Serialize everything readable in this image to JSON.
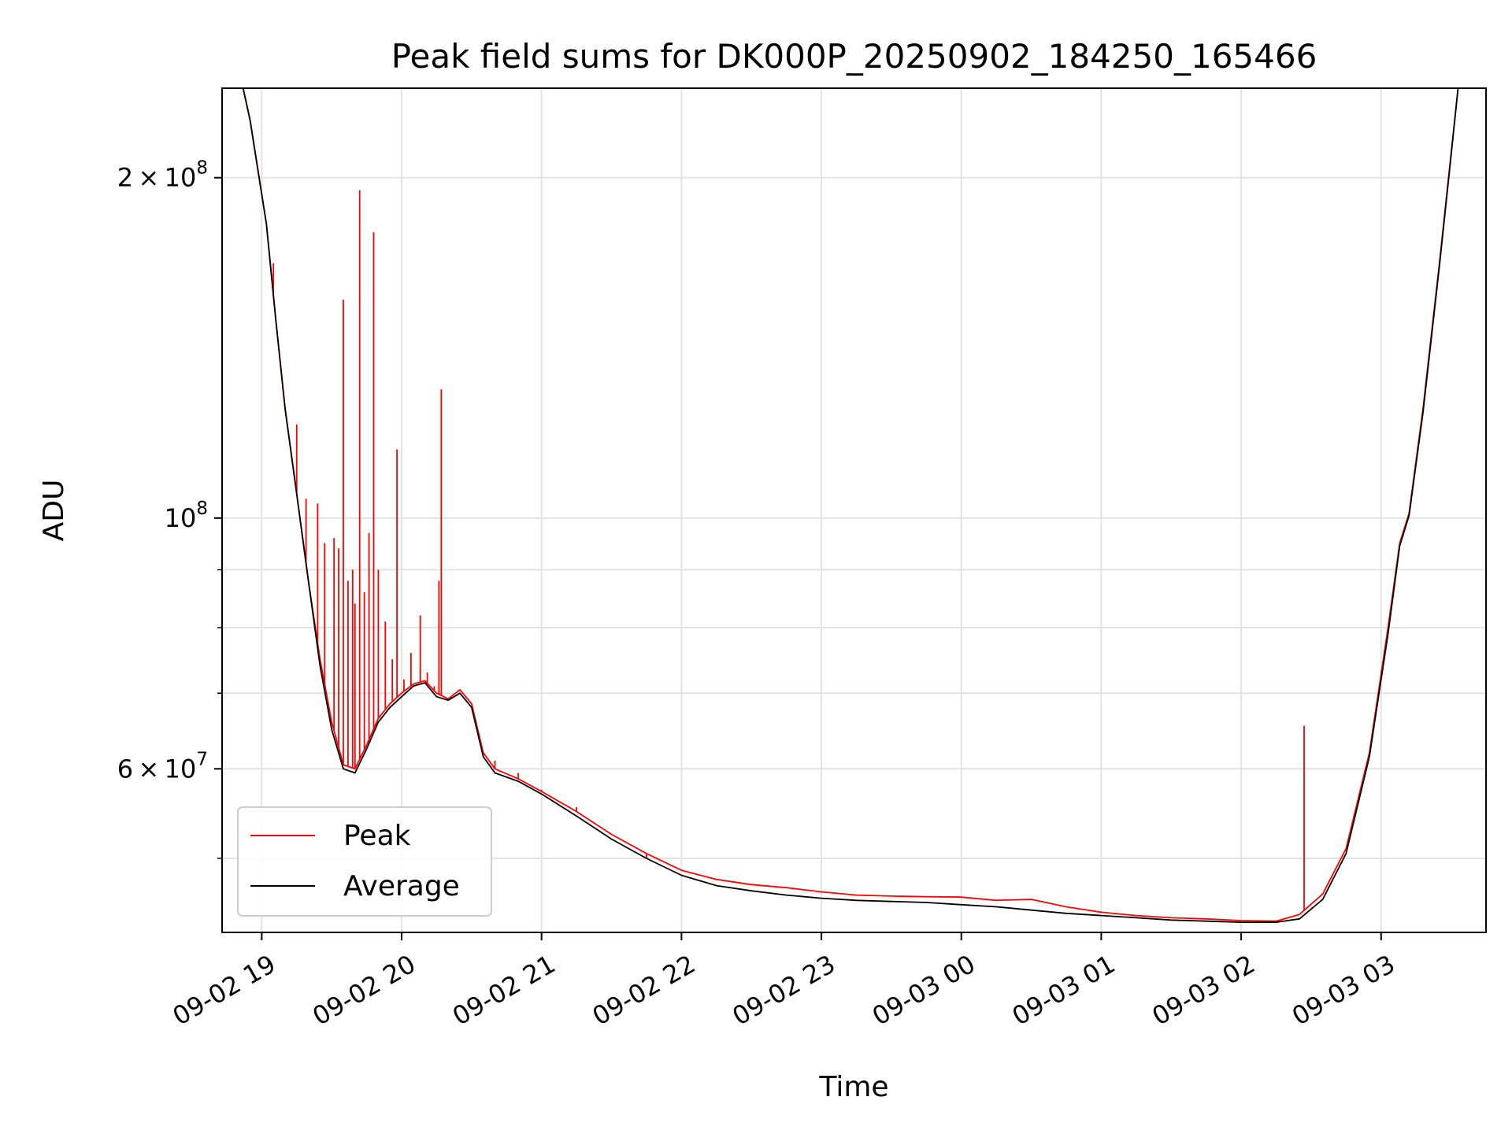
{
  "chart_data": {
    "type": "line",
    "title": "Peak field sums for DK000P_20250902_184250_165466",
    "xlabel": "Time",
    "ylabel": "ADU",
    "yscale": "log",
    "ylim": [
      43000000,
      240000000
    ],
    "xlim": [
      "2025-09-02 18:43",
      "2025-09-03 03:45"
    ],
    "grid": true,
    "legend": "lower-left",
    "x_ticks": [
      {
        "x": "2025-09-02 19:00",
        "label": "09-02 19"
      },
      {
        "x": "2025-09-02 20:00",
        "label": "09-02 20"
      },
      {
        "x": "2025-09-02 21:00",
        "label": "09-02 21"
      },
      {
        "x": "2025-09-02 22:00",
        "label": "09-02 22"
      },
      {
        "x": "2025-09-02 23:00",
        "label": "09-02 23"
      },
      {
        "x": "2025-09-03 00:00",
        "label": "09-03 00"
      },
      {
        "x": "2025-09-03 01:00",
        "label": "09-03 01"
      },
      {
        "x": "2025-09-03 02:00",
        "label": "09-03 02"
      },
      {
        "x": "2025-09-03 03:00",
        "label": "09-03 03"
      }
    ],
    "y_major_ticks": [
      {
        "value": 60000000,
        "mantissa": "6",
        "base": "10",
        "exp": "7"
      },
      {
        "value": 100000000,
        "mantissa": "",
        "base": "10",
        "exp": "8"
      },
      {
        "value": 200000000,
        "mantissa": "2",
        "base": "10",
        "exp": "8"
      }
    ],
    "y_minor_ticks": [
      50000000,
      70000000,
      80000000,
      90000000
    ],
    "series": [
      {
        "name": "Peak",
        "color": "#ff0000",
        "x": [
          "2025-09-02 18:43",
          "2025-09-02 18:52",
          "2025-09-02 18:55",
          "2025-09-02 19:02",
          "2025-09-02 19:06",
          "2025-09-02 19:10",
          "2025-09-02 19:15",
          "2025-09-02 19:20",
          "2025-09-02 19:25",
          "2025-09-02 19:30",
          "2025-09-02 19:35",
          "2025-09-02 19:40",
          "2025-09-02 19:45",
          "2025-09-02 19:50",
          "2025-09-02 19:55",
          "2025-09-02 20:00",
          "2025-09-02 20:05",
          "2025-09-02 20:10",
          "2025-09-02 20:15",
          "2025-09-02 20:20",
          "2025-09-02 20:25",
          "2025-09-02 20:30",
          "2025-09-02 20:35",
          "2025-09-02 20:40",
          "2025-09-02 20:50",
          "2025-09-02 21:00",
          "2025-09-02 21:15",
          "2025-09-02 21:30",
          "2025-09-02 21:45",
          "2025-09-02 22:00",
          "2025-09-02 22:15",
          "2025-09-02 22:30",
          "2025-09-02 22:45",
          "2025-09-02 23:00",
          "2025-09-02 23:15",
          "2025-09-02 23:30",
          "2025-09-02 23:45",
          "2025-09-03 00:00",
          "2025-09-03 00:15",
          "2025-09-03 00:30",
          "2025-09-03 00:45",
          "2025-09-03 01:00",
          "2025-09-03 01:15",
          "2025-09-03 01:30",
          "2025-09-03 01:45",
          "2025-09-03 02:00",
          "2025-09-03 02:15",
          "2025-09-03 02:25",
          "2025-09-03 02:35",
          "2025-09-03 02:45",
          "2025-09-03 02:55",
          "2025-09-03 03:03",
          "2025-09-03 03:08",
          "2025-09-03 03:12",
          "2025-09-03 03:18",
          "2025-09-03 03:25",
          "2025-09-03 03:30",
          "2025-09-03 03:33",
          "2025-09-03 03:45"
        ],
        "values": [
          240000000,
          240000000,
          225000000,
          182000000,
          150000000,
          125000000,
          105000000,
          88000000,
          75000000,
          66000000,
          60500000,
          60000000,
          63000000,
          66500000,
          68500000,
          70000000,
          71300000,
          71800000,
          70000000,
          69200000,
          70500000,
          68500000,
          62000000,
          60000000,
          58800000,
          57300000,
          55000000,
          52500000,
          50500000,
          48800000,
          47900000,
          47400000,
          47100000,
          46700000,
          46400000,
          46300000,
          46250000,
          46200000,
          45900000,
          46000000,
          45300000,
          44800000,
          44500000,
          44300000,
          44200000,
          44050000,
          44000000,
          44600000,
          46500000,
          51000000,
          62000000,
          80000000,
          95000000,
          101000000,
          125000000,
          168000000,
          210000000,
          240000000,
          240000000
        ],
        "spikes": [
          {
            "x": "2025-09-02 19:05",
            "value": 168000000
          },
          {
            "x": "2025-09-02 19:15",
            "value": 121000000
          },
          {
            "x": "2025-09-02 19:19",
            "value": 104000000
          },
          {
            "x": "2025-09-02 19:24",
            "value": 103000000
          },
          {
            "x": "2025-09-02 19:27",
            "value": 95000000
          },
          {
            "x": "2025-09-02 19:31",
            "value": 96000000
          },
          {
            "x": "2025-09-02 19:33",
            "value": 94000000
          },
          {
            "x": "2025-09-02 19:35",
            "value": 156000000
          },
          {
            "x": "2025-09-02 19:37",
            "value": 88000000
          },
          {
            "x": "2025-09-02 19:39",
            "value": 90000000
          },
          {
            "x": "2025-09-02 19:40",
            "value": 84000000
          },
          {
            "x": "2025-09-02 19:42",
            "value": 195000000
          },
          {
            "x": "2025-09-02 19:44",
            "value": 86000000
          },
          {
            "x": "2025-09-02 19:46",
            "value": 97000000
          },
          {
            "x": "2025-09-02 19:48",
            "value": 179000000
          },
          {
            "x": "2025-09-02 19:50",
            "value": 90000000
          },
          {
            "x": "2025-09-02 19:53",
            "value": 81000000
          },
          {
            "x": "2025-09-02 19:56",
            "value": 75000000
          },
          {
            "x": "2025-09-02 19:58",
            "value": 115000000
          },
          {
            "x": "2025-09-02 20:01",
            "value": 72000000
          },
          {
            "x": "2025-09-02 20:04",
            "value": 76000000
          },
          {
            "x": "2025-09-02 20:08",
            "value": 82000000
          },
          {
            "x": "2025-09-02 20:11",
            "value": 73000000
          },
          {
            "x": "2025-09-02 20:14",
            "value": 71000000
          },
          {
            "x": "2025-09-02 20:16",
            "value": 88000000
          },
          {
            "x": "2025-09-02 20:17",
            "value": 130000000
          },
          {
            "x": "2025-09-02 20:40",
            "value": 61000000
          },
          {
            "x": "2025-09-02 20:50",
            "value": 59500000
          },
          {
            "x": "2025-09-02 21:00",
            "value": 57500000
          },
          {
            "x": "2025-09-02 21:15",
            "value": 55500000
          },
          {
            "x": "2025-09-02 21:30",
            "value": 52500000
          },
          {
            "x": "2025-09-02 21:45",
            "value": 50000000
          },
          {
            "x": "2025-09-03 02:27",
            "value": 65500000
          }
        ]
      },
      {
        "name": "Average",
        "color": "#000000",
        "x": [
          "2025-09-02 18:43",
          "2025-09-02 18:52",
          "2025-09-02 18:55",
          "2025-09-02 19:02",
          "2025-09-02 19:06",
          "2025-09-02 19:10",
          "2025-09-02 19:15",
          "2025-09-02 19:20",
          "2025-09-02 19:25",
          "2025-09-02 19:30",
          "2025-09-02 19:35",
          "2025-09-02 19:40",
          "2025-09-02 19:45",
          "2025-09-02 19:50",
          "2025-09-02 19:55",
          "2025-09-02 20:00",
          "2025-09-02 20:05",
          "2025-09-02 20:10",
          "2025-09-02 20:15",
          "2025-09-02 20:20",
          "2025-09-02 20:25",
          "2025-09-02 20:30",
          "2025-09-02 20:35",
          "2025-09-02 20:40",
          "2025-09-02 20:50",
          "2025-09-02 21:00",
          "2025-09-02 21:15",
          "2025-09-02 21:30",
          "2025-09-02 21:45",
          "2025-09-02 22:00",
          "2025-09-02 22:15",
          "2025-09-02 22:30",
          "2025-09-02 22:45",
          "2025-09-02 23:00",
          "2025-09-02 23:15",
          "2025-09-02 23:30",
          "2025-09-02 23:45",
          "2025-09-03 00:00",
          "2025-09-03 00:15",
          "2025-09-03 00:30",
          "2025-09-03 00:45",
          "2025-09-03 01:00",
          "2025-09-03 01:15",
          "2025-09-03 01:30",
          "2025-09-03 01:45",
          "2025-09-03 02:00",
          "2025-09-03 02:15",
          "2025-09-03 02:25",
          "2025-09-03 02:35",
          "2025-09-03 02:45",
          "2025-09-03 02:55",
          "2025-09-03 03:03",
          "2025-09-03 03:08",
          "2025-09-03 03:12",
          "2025-09-03 03:18",
          "2025-09-03 03:25",
          "2025-09-03 03:30",
          "2025-09-03 03:33",
          "2025-09-03 03:45"
        ],
        "values": [
          240000000,
          240000000,
          225000000,
          182000000,
          150000000,
          125000000,
          105000000,
          88000000,
          74000000,
          65000000,
          60000000,
          59500000,
          62500000,
          66000000,
          68000000,
          69500000,
          71000000,
          71500000,
          69500000,
          69000000,
          70000000,
          68000000,
          61500000,
          59500000,
          58500000,
          57000000,
          54500000,
          52000000,
          50000000,
          48300000,
          47300000,
          46800000,
          46400000,
          46100000,
          45900000,
          45800000,
          45700000,
          45500000,
          45300000,
          45000000,
          44700000,
          44500000,
          44300000,
          44100000,
          44000000,
          43900000,
          43900000,
          44200000,
          46000000,
          50500000,
          61500000,
          79000000,
          94500000,
          100500000,
          124000000,
          167000000,
          209000000,
          240000000,
          240000000
        ]
      }
    ]
  }
}
